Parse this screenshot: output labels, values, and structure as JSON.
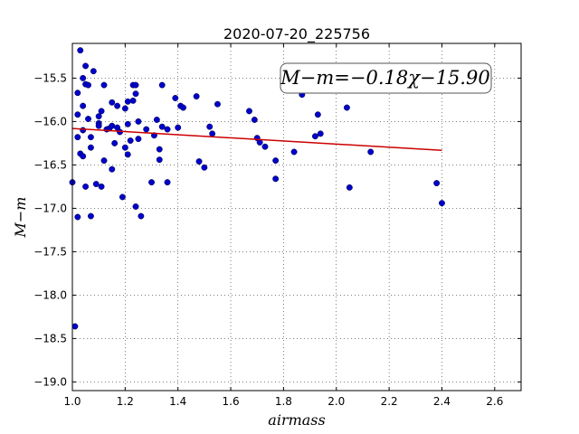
{
  "chart_data": {
    "type": "scatter",
    "title": "2020-07-20_225756",
    "xlabel": "airmass",
    "ylabel": "M−m",
    "xlim": [
      1.0,
      2.7
    ],
    "ylim": [
      -19.1,
      -15.1
    ],
    "y_inverted": true,
    "x_ticks": [
      1.0,
      1.2,
      1.4,
      1.6,
      1.8,
      2.0,
      2.2,
      2.4,
      2.6
    ],
    "x_tick_labels": [
      "1.0",
      "1.2",
      "1.4",
      "1.6",
      "1.8",
      "2.0",
      "2.2",
      "2.4",
      "2.6"
    ],
    "y_ticks": [
      -15.5,
      -16.0,
      -16.5,
      -17.0,
      -17.5,
      -18.0,
      -18.5,
      -19.0
    ],
    "y_tick_labels": [
      "−15.5",
      "−16.0",
      "−16.5",
      "−17.0",
      "−17.5",
      "−18.0",
      "−18.5",
      "−19.0"
    ],
    "grid": true,
    "annotation": "M−m=−0.18χ−15.90",
    "fit_line": {
      "slope": -0.18,
      "intercept": -15.9,
      "x_range": [
        1.0,
        2.4
      ],
      "color": "#cc0000"
    },
    "point_color": "#0000cc",
    "points": [
      [
        1.0,
        -16.7
      ],
      [
        1.01,
        -18.36
      ],
      [
        1.02,
        -16.18
      ],
      [
        1.02,
        -17.1
      ],
      [
        1.02,
        -15.67
      ],
      [
        1.02,
        -15.92
      ],
      [
        1.03,
        -15.18
      ],
      [
        1.03,
        -16.37
      ],
      [
        1.04,
        -16.4
      ],
      [
        1.04,
        -15.5
      ],
      [
        1.04,
        -15.82
      ],
      [
        1.04,
        -16.1
      ],
      [
        1.05,
        -15.57
      ],
      [
        1.05,
        -16.75
      ],
      [
        1.05,
        -15.36
      ],
      [
        1.06,
        -15.58
      ],
      [
        1.06,
        -15.97
      ],
      [
        1.07,
        -16.18
      ],
      [
        1.07,
        -16.3
      ],
      [
        1.07,
        -17.09
      ],
      [
        1.08,
        -15.42
      ],
      [
        1.09,
        -16.72
      ],
      [
        1.1,
        -15.94
      ],
      [
        1.1,
        -16.02
      ],
      [
        1.1,
        -16.05
      ],
      [
        1.11,
        -16.75
      ],
      [
        1.11,
        -15.88
      ],
      [
        1.12,
        -15.58
      ],
      [
        1.12,
        -16.45
      ],
      [
        1.13,
        -16.09
      ],
      [
        1.14,
        -16.08
      ],
      [
        1.15,
        -16.55
      ],
      [
        1.15,
        -15.78
      ],
      [
        1.15,
        -16.05
      ],
      [
        1.16,
        -16.25
      ],
      [
        1.17,
        -15.82
      ],
      [
        1.17,
        -16.07
      ],
      [
        1.18,
        -16.12
      ],
      [
        1.19,
        -16.87
      ],
      [
        1.2,
        -15.85
      ],
      [
        1.2,
        -16.3
      ],
      [
        1.21,
        -16.03
      ],
      [
        1.21,
        -15.77
      ],
      [
        1.21,
        -16.38
      ],
      [
        1.22,
        -16.22
      ],
      [
        1.23,
        -15.58
      ],
      [
        1.23,
        -15.76
      ],
      [
        1.24,
        -15.58
      ],
      [
        1.24,
        -15.68
      ],
      [
        1.24,
        -16.98
      ],
      [
        1.25,
        -16.0
      ],
      [
        1.25,
        -16.2
      ],
      [
        1.26,
        -17.09
      ],
      [
        1.28,
        -16.09
      ],
      [
        1.3,
        -16.7
      ],
      [
        1.31,
        -16.16
      ],
      [
        1.32,
        -15.98
      ],
      [
        1.33,
        -16.32
      ],
      [
        1.33,
        -16.44
      ],
      [
        1.34,
        -15.58
      ],
      [
        1.34,
        -16.06
      ],
      [
        1.36,
        -16.7
      ],
      [
        1.36,
        -16.09
      ],
      [
        1.39,
        -15.73
      ],
      [
        1.4,
        -16.07
      ],
      [
        1.41,
        -15.82
      ],
      [
        1.42,
        -15.84
      ],
      [
        1.47,
        -15.71
      ],
      [
        1.48,
        -16.46
      ],
      [
        1.5,
        -16.53
      ],
      [
        1.52,
        -16.06
      ],
      [
        1.53,
        -16.14
      ],
      [
        1.55,
        -15.8
      ],
      [
        1.67,
        -15.88
      ],
      [
        1.69,
        -15.98
      ],
      [
        1.7,
        -16.19
      ],
      [
        1.71,
        -16.24
      ],
      [
        1.73,
        -16.29
      ],
      [
        1.77,
        -16.45
      ],
      [
        1.77,
        -16.66
      ],
      [
        1.84,
        -16.35
      ],
      [
        1.87,
        -15.69
      ],
      [
        1.92,
        -16.17
      ],
      [
        1.93,
        -15.92
      ],
      [
        1.94,
        -16.14
      ],
      [
        2.04,
        -15.84
      ],
      [
        2.05,
        -16.76
      ],
      [
        2.13,
        -16.35
      ],
      [
        2.38,
        -16.71
      ],
      [
        2.4,
        -16.94
      ]
    ]
  }
}
